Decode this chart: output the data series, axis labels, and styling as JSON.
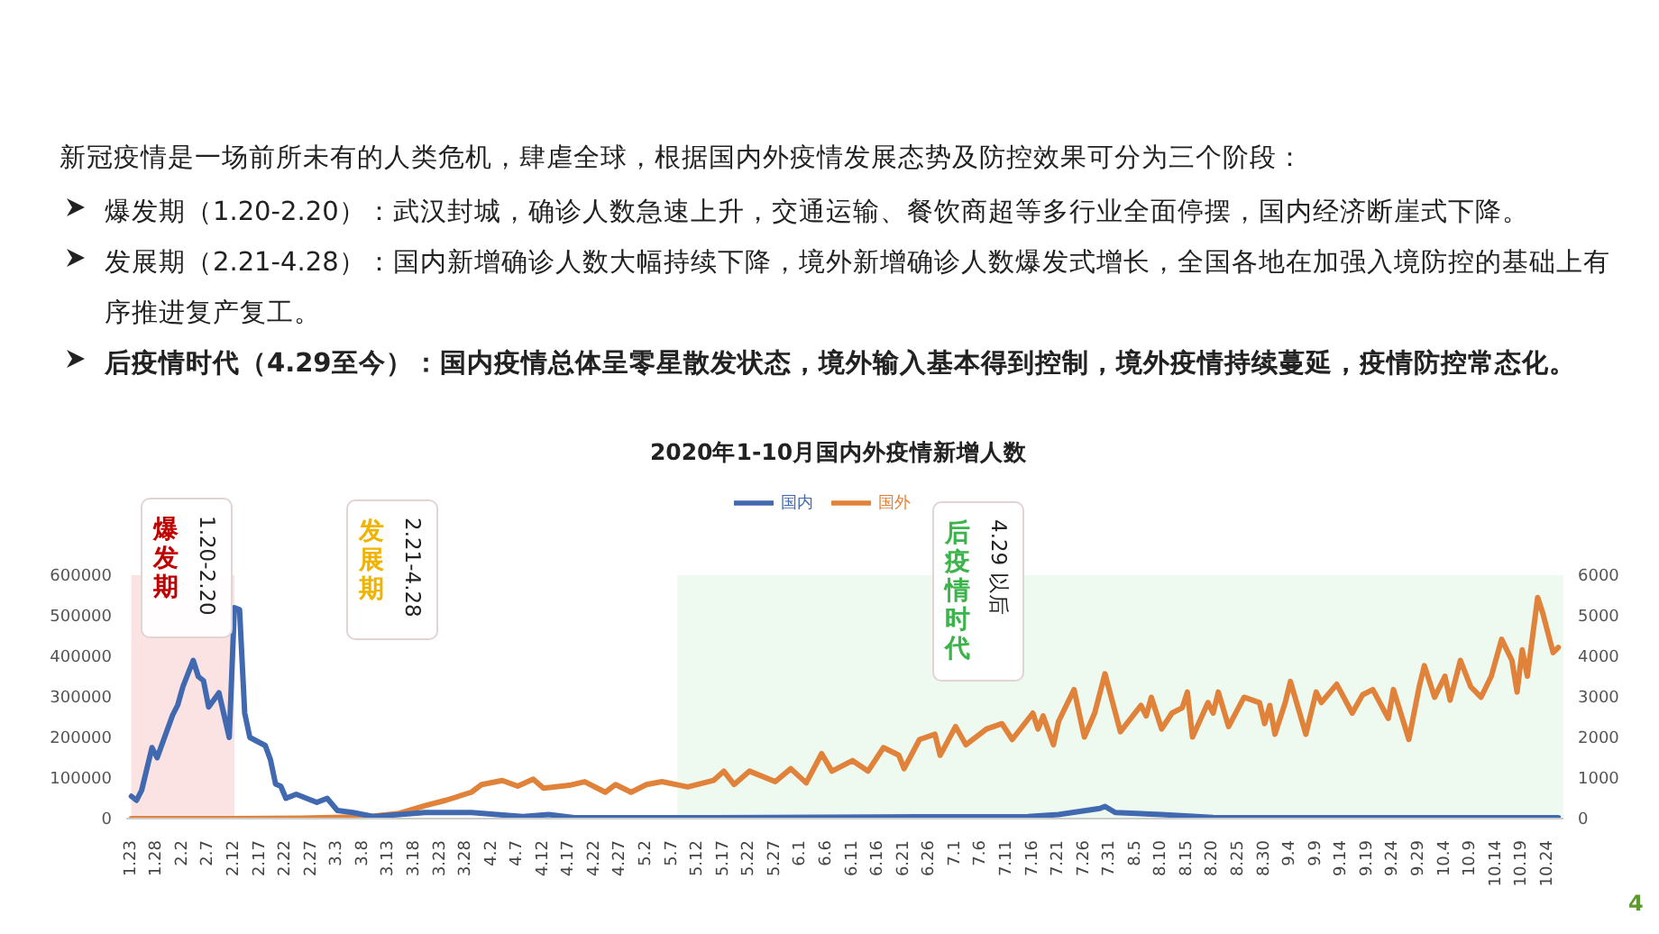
{
  "chart_data": {
    "type": "line",
    "title": "2020年1-10月国内外疫情新增人数",
    "subtitle": "新冠疫情是一场前所未有的人类危机，肆虐全球，根据国内外疫情发展态势及防控效果可分为三个阶段：",
    "annotations": [
      "爆发期（1.20-2.20）：武汉封城，确诊人数急速上升，交通运输、餐饮商超等多行业全面停摆，国内经济断崖式下降。",
      "发展期（2.21-4.28）：国内新增确诊人数大幅持续下降，境外新增确诊人数爆发式增长，全国各地在加强入境防控的基础上有序推进复产复工。",
      "后疫情时代（4.29至今）：国内疫情总体呈零星散发状态，境外输入基本得到控制，境外疫情持续蔓延，疫情防控常态化。",
      "爆发期",
      "1.20-2.20",
      "发展期",
      "2.21-4.28",
      "后疫情时代",
      "4.29 以后",
      "4"
    ],
    "series": [
      {
        "name": "国外",
        "color": "#e0823a",
        "axis": "y",
        "x": [
          "--01-23",
          "--02-10",
          "--02-25",
          "--03-06",
          "--03-10",
          "--03-15",
          "--03-20",
          "--03-24",
          "--03-29",
          "--03-31",
          "--04-04",
          "--04-07",
          "--04-10",
          "--04-12",
          "--04-17",
          "--04-20",
          "--04-24",
          "--04-26",
          "--04-29",
          "--05-02",
          "--05-05",
          "--05-10",
          "--05-15",
          "--05-17",
          "--05-19",
          "--05-22",
          "--05-27",
          "--05-30",
          "--06-02",
          "--06-05",
          "--06-07",
          "--06-11",
          "--06-14",
          "--06-17",
          "--06-20",
          "--06-21",
          "--06-24",
          "--06-27",
          "--06-28",
          "--07-01",
          "--07-03",
          "--07-07",
          "--07-10",
          "--07-12",
          "--07-16",
          "--07-17",
          "--07-18",
          "--07-20",
          "--07-21",
          "--07-24",
          "--07-26",
          "--07-28",
          "--07-30",
          "--08-02",
          "--08-06",
          "--08-07",
          "--08-08",
          "--08-10",
          "--08-12",
          "--08-14",
          "--08-15",
          "--08-16",
          "--08-19",
          "--08-20",
          "--08-21",
          "--08-23",
          "--08-26",
          "--08-29",
          "--08-30",
          "--08-31",
          "--09-01",
          "--09-03",
          "--09-04",
          "--09-07",
          "--09-09",
          "--09-10",
          "--09-13",
          "--09-16",
          "--09-18",
          "--09-20",
          "--09-23",
          "--09-24",
          "--09-27",
          "--09-29",
          "--09-30",
          "--10-02",
          "--10-04",
          "--10-05",
          "--10-07",
          "--10-09",
          "--10-11",
          "--10-13",
          "--10-15",
          "--10-17",
          "--10-18",
          "--10-19",
          "--10-20",
          "--10-22",
          "--10-23",
          "--10-25",
          "--10-26"
        ],
        "values": [
          0,
          0,
          1000,
          4000,
          6000,
          13000,
          32000,
          45000,
          65000,
          84000,
          94000,
          80000,
          97000,
          75000,
          82000,
          91000,
          65000,
          84000,
          65000,
          84000,
          91000,
          78000,
          94000,
          117000,
          84000,
          117000,
          91000,
          123000,
          88000,
          160000,
          117000,
          143000,
          117000,
          175000,
          156000,
          123000,
          195000,
          208000,
          156000,
          227000,
          182000,
          221000,
          234000,
          195000,
          260000,
          221000,
          253000,
          182000,
          240000,
          318000,
          201000,
          260000,
          357000,
          214000,
          279000,
          253000,
          299000,
          221000,
          260000,
          273000,
          312000,
          201000,
          286000,
          260000,
          312000,
          227000,
          299000,
          286000,
          234000,
          279000,
          208000,
          286000,
          338000,
          208000,
          312000,
          286000,
          331000,
          260000,
          305000,
          318000,
          247000,
          318000,
          195000,
          325000,
          377000,
          299000,
          351000,
          292000,
          390000,
          325000,
          299000,
          351000,
          442000,
          390000,
          312000,
          416000,
          351000,
          545000,
          506000,
          409000,
          422000
        ]
      },
      {
        "name": "国内",
        "color": "#4169b0",
        "axis": "y2",
        "x": [
          "--01-23",
          "--01-24",
          "--01-25",
          "--01-27",
          "--01-28",
          "--01-31",
          "--02-01",
          "--02-02",
          "--02-04",
          "--02-05",
          "--02-06",
          "--02-07",
          "--02-09",
          "--02-10",
          "--02-11",
          "--02-12",
          "--02-13",
          "--02-14",
          "--02-15",
          "--02-18",
          "--02-19",
          "--02-20",
          "--02-21",
          "--02-22",
          "--02-24",
          "--02-27",
          "--02-28",
          "--03-01",
          "--03-03",
          "--03-06",
          "--03-10",
          "--03-20",
          "--03-29",
          "--04-08",
          "--04-13",
          "--04-18",
          "--05-15",
          "--06-15",
          "--07-15",
          "--07-21",
          "--07-29",
          "--07-30",
          "--08-01",
          "--08-10",
          "--08-20",
          "--09-20",
          "--10-26"
        ],
        "values": [
          550,
          450,
          700,
          1750,
          1500,
          2550,
          2800,
          3250,
          3900,
          3500,
          3400,
          2750,
          3100,
          2550,
          2000,
          5200,
          5150,
          2600,
          2000,
          1800,
          1450,
          850,
          800,
          500,
          600,
          450,
          400,
          500,
          200,
          150,
          50,
          150,
          150,
          50,
          100,
          20,
          20,
          40,
          50,
          100,
          250,
          300,
          150,
          100,
          30,
          20,
          20
        ]
      }
    ],
    "xlim": [
      "--01-22",
      "--10-27"
    ],
    "xticks": [
      {
        "value": "--01-23",
        "label": "1.23"
      },
      {
        "value": "--01-28",
        "label": "1.28"
      },
      {
        "value": "--02-02",
        "label": "2.2"
      },
      {
        "value": "--02-07",
        "label": "2.7"
      },
      {
        "value": "--02-12",
        "label": "2.12"
      },
      {
        "value": "--02-17",
        "label": "2.17"
      },
      {
        "value": "--02-22",
        "label": "2.22"
      },
      {
        "value": "--02-27",
        "label": "2.27"
      },
      {
        "value": "--03-03",
        "label": "3.3"
      },
      {
        "value": "--03-08",
        "label": "3.8"
      },
      {
        "value": "--03-13",
        "label": "3.13"
      },
      {
        "value": "--03-18",
        "label": "3.18"
      },
      {
        "value": "--03-23",
        "label": "3.23"
      },
      {
        "value": "--03-28",
        "label": "3.28"
      },
      {
        "value": "--04-02",
        "label": "4.2"
      },
      {
        "value": "--04-07",
        "label": "4.7"
      },
      {
        "value": "--04-12",
        "label": "4.12"
      },
      {
        "value": "--04-17",
        "label": "4.17"
      },
      {
        "value": "--04-22",
        "label": "4.22"
      },
      {
        "value": "--04-27",
        "label": "4.27"
      },
      {
        "value": "--05-02",
        "label": "5.2"
      },
      {
        "value": "--05-07",
        "label": "5.7"
      },
      {
        "value": "--05-12",
        "label": "5.12"
      },
      {
        "value": "--05-17",
        "label": "5.17"
      },
      {
        "value": "--05-22",
        "label": "5.22"
      },
      {
        "value": "--05-27",
        "label": "5.27"
      },
      {
        "value": "--06-01",
        "label": "6.1"
      },
      {
        "value": "--06-06",
        "label": "6.6"
      },
      {
        "value": "--06-11",
        "label": "6.11"
      },
      {
        "value": "--06-16",
        "label": "6.16"
      },
      {
        "value": "--06-21",
        "label": "6.21"
      },
      {
        "value": "--06-26",
        "label": "6.26"
      },
      {
        "value": "--07-01",
        "label": "7.1"
      },
      {
        "value": "--07-06",
        "label": "7.6"
      },
      {
        "value": "--07-11",
        "label": "7.11"
      },
      {
        "value": "--07-16",
        "label": "7.16"
      },
      {
        "value": "--07-21",
        "label": "7.21"
      },
      {
        "value": "--07-26",
        "label": "7.26"
      },
      {
        "value": "--07-31",
        "label": "7.31"
      },
      {
        "value": "--08-05",
        "label": "8.5"
      },
      {
        "value": "--08-10",
        "label": "8.10"
      },
      {
        "value": "--08-15",
        "label": "8.15"
      },
      {
        "value": "--08-20",
        "label": "8.20"
      },
      {
        "value": "--08-25",
        "label": "8.25"
      },
      {
        "value": "--08-30",
        "label": "8.30"
      },
      {
        "value": "--09-04",
        "label": "9.4"
      },
      {
        "value": "--09-09",
        "label": "9.9"
      },
      {
        "value": "--09-14",
        "label": "9.14"
      },
      {
        "value": "--09-19",
        "label": "9.19"
      },
      {
        "value": "--09-24",
        "label": "9.24"
      },
      {
        "value": "--09-29",
        "label": "9.29"
      },
      {
        "value": "--10-04",
        "label": "10.4"
      },
      {
        "value": "--10-09",
        "label": "10.9"
      },
      {
        "value": "--10-14",
        "label": "10.14"
      },
      {
        "value": "--10-19",
        "label": "10.19"
      },
      {
        "value": "--10-24",
        "label": "10.24"
      }
    ],
    "ylim": [
      0,
      600000
    ],
    "yticks": [
      0,
      100000,
      200000,
      300000,
      400000,
      500000,
      600000
    ],
    "y2lim": [
      0,
      6000
    ],
    "y2ticks": [
      0,
      1000,
      2000,
      3000,
      4000,
      5000,
      6000
    ],
    "bands": [
      {
        "axis": "x",
        "from": "--01-23",
        "to": "--02-12",
        "color": "#fbe3e4"
      },
      {
        "axis": "x",
        "from": "--05-08",
        "to": "--10-27",
        "color": "#eef9f0"
      }
    ],
    "legend": "top",
    "marker": "none",
    "line_style": "solid",
    "grid": false
  }
}
